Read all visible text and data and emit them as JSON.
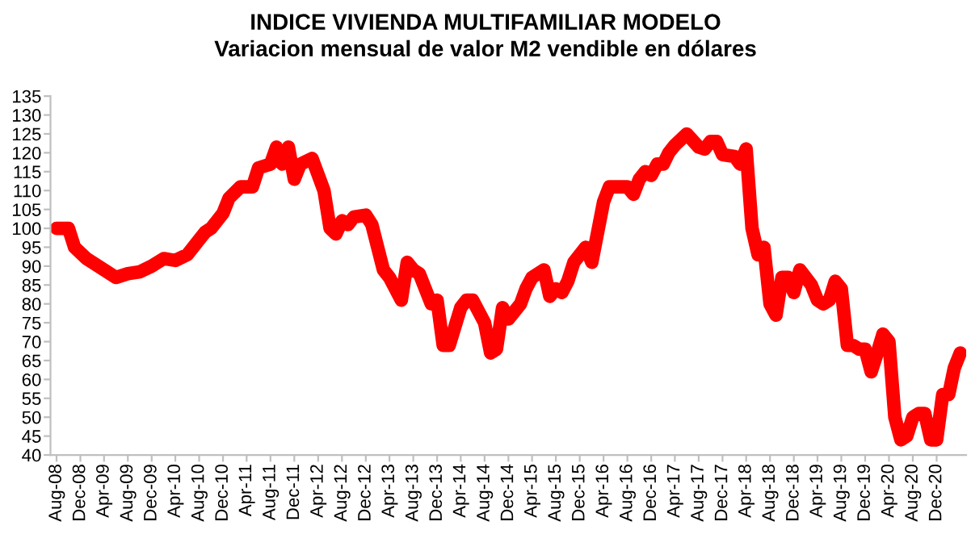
{
  "chart_data": {
    "type": "line",
    "title": "INDICE VIVIENDA MULTIFAMILIAR MODELO",
    "subtitle": "Variacion mensual de valor M2 vendible en dólares",
    "x": [
      "2008-08",
      "2008-10",
      "2008-11",
      "2009-01",
      "2009-04",
      "2009-06",
      "2009-08",
      "2009-10",
      "2009-12",
      "2010-02",
      "2010-04",
      "2010-06",
      "2010-08",
      "2010-09",
      "2010-10",
      "2010-12",
      "2011-01",
      "2011-03",
      "2011-05",
      "2011-06",
      "2011-08",
      "2011-09",
      "2011-10",
      "2011-11",
      "2011-12",
      "2012-01",
      "2012-03",
      "2012-05",
      "2012-06",
      "2012-07",
      "2012-08",
      "2012-09",
      "2012-10",
      "2012-12",
      "2013-01",
      "2013-03",
      "2013-04",
      "2013-06",
      "2013-07",
      "2013-08",
      "2013-09",
      "2013-11",
      "2013-12",
      "2014-01",
      "2014-02",
      "2014-04",
      "2014-05",
      "2014-06",
      "2014-08",
      "2014-09",
      "2014-10",
      "2014-11",
      "2014-12",
      "2015-02",
      "2015-03",
      "2015-04",
      "2015-06",
      "2015-07",
      "2015-08",
      "2015-09",
      "2015-10",
      "2015-11",
      "2016-01",
      "2016-02",
      "2016-04",
      "2016-05",
      "2016-06",
      "2016-08",
      "2016-09",
      "2016-10",
      "2016-11",
      "2016-12",
      "2017-01",
      "2017-02",
      "2017-03",
      "2017-04",
      "2017-06",
      "2017-08",
      "2017-09",
      "2017-10",
      "2017-11",
      "2017-12",
      "2018-02",
      "2018-03",
      "2018-04",
      "2018-05",
      "2018-06",
      "2018-07",
      "2018-08",
      "2018-09",
      "2018-10",
      "2018-11",
      "2018-12",
      "2019-01",
      "2019-03",
      "2019-04",
      "2019-05",
      "2019-06",
      "2019-07",
      "2019-08",
      "2019-09",
      "2019-10",
      "2019-11",
      "2019-12",
      "2020-01",
      "2020-02",
      "2020-03",
      "2020-04",
      "2020-05",
      "2020-06",
      "2020-07",
      "2020-08",
      "2020-09",
      "2020-10",
      "2020-11",
      "2020-12",
      "2021-01",
      "2021-02",
      "2021-03",
      "2021-04"
    ],
    "series": [
      {
        "color": "#ff0000",
        "values": [
          100,
          100,
          95,
          92,
          89,
          87,
          88,
          88.5,
          90,
          92,
          91.5,
          93,
          97,
          99,
          100,
          104,
          108,
          111,
          111,
          116,
          117,
          121.5,
          117,
          121.5,
          113,
          117,
          118.5,
          110,
          100,
          98.5,
          102,
          101,
          103,
          103.5,
          101,
          89,
          87,
          81,
          91,
          89,
          88,
          80,
          81,
          69,
          69,
          79,
          81,
          81,
          75,
          67,
          68,
          79,
          76,
          80,
          84,
          87,
          89,
          82,
          84,
          83,
          86,
          91,
          95,
          91,
          107,
          111,
          111,
          111,
          109,
          113,
          115,
          114,
          117,
          117,
          120,
          122,
          125,
          121.5,
          121,
          123,
          123,
          119.5,
          119,
          117,
          121,
          100,
          93,
          95,
          80,
          77,
          87,
          87,
          83,
          89,
          85,
          81,
          80,
          81,
          86,
          84,
          69,
          69,
          68,
          68,
          62,
          67,
          72,
          70,
          50,
          44,
          45,
          50,
          51,
          51,
          44,
          44,
          56,
          56,
          63,
          67
        ]
      }
    ],
    "xlim": [
      "2008-07",
      "2021-05"
    ],
    "xticks": [
      {
        "value": "2008-08",
        "label": "Aug-08"
      },
      {
        "value": "2008-12",
        "label": "Dec-08"
      },
      {
        "value": "2009-04",
        "label": "Apr-09"
      },
      {
        "value": "2009-08",
        "label": "Aug-09"
      },
      {
        "value": "2009-12",
        "label": "Dec-09"
      },
      {
        "value": "2010-04",
        "label": "Apr-10"
      },
      {
        "value": "2010-08",
        "label": "Aug-10"
      },
      {
        "value": "2010-12",
        "label": "Dec-10"
      },
      {
        "value": "2011-04",
        "label": "Apr-11"
      },
      {
        "value": "2011-08",
        "label": "Aug-11"
      },
      {
        "value": "2011-12",
        "label": "Dec-11"
      },
      {
        "value": "2012-04",
        "label": "Apr-12"
      },
      {
        "value": "2012-08",
        "label": "Aug-12"
      },
      {
        "value": "2012-12",
        "label": "Dec-12"
      },
      {
        "value": "2013-04",
        "label": "Apr-13"
      },
      {
        "value": "2013-08",
        "label": "Aug-13"
      },
      {
        "value": "2013-12",
        "label": "Dec-13"
      },
      {
        "value": "2014-04",
        "label": "Apr-14"
      },
      {
        "value": "2014-08",
        "label": "Aug-14"
      },
      {
        "value": "2014-12",
        "label": "Dec-14"
      },
      {
        "value": "2015-04",
        "label": "Apr-15"
      },
      {
        "value": "2015-08",
        "label": "Aug-15"
      },
      {
        "value": "2015-12",
        "label": "Dec-15"
      },
      {
        "value": "2016-04",
        "label": "Apr-16"
      },
      {
        "value": "2016-08",
        "label": "Aug-16"
      },
      {
        "value": "2016-12",
        "label": "Dec-16"
      },
      {
        "value": "2017-04",
        "label": "Apr-17"
      },
      {
        "value": "2017-08",
        "label": "Aug-17"
      },
      {
        "value": "2017-12",
        "label": "Dec-17"
      },
      {
        "value": "2018-04",
        "label": "Apr-18"
      },
      {
        "value": "2018-08",
        "label": "Aug-18"
      },
      {
        "value": "2018-12",
        "label": "Dec-18"
      },
      {
        "value": "2019-04",
        "label": "Apr-19"
      },
      {
        "value": "2019-08",
        "label": "Aug-19"
      },
      {
        "value": "2019-12",
        "label": "Dec-19"
      },
      {
        "value": "2020-04",
        "label": "Apr-20"
      },
      {
        "value": "2020-08",
        "label": "Aug-20"
      },
      {
        "value": "2020-12",
        "label": "Dec-20"
      }
    ],
    "ylim": [
      40,
      135
    ],
    "yticks": [
      40,
      45,
      50,
      55,
      60,
      65,
      70,
      75,
      80,
      85,
      90,
      95,
      100,
      105,
      110,
      115,
      120,
      125,
      130,
      135
    ],
    "grid": false,
    "legend": false,
    "marker": "none",
    "line_style": "solid"
  }
}
